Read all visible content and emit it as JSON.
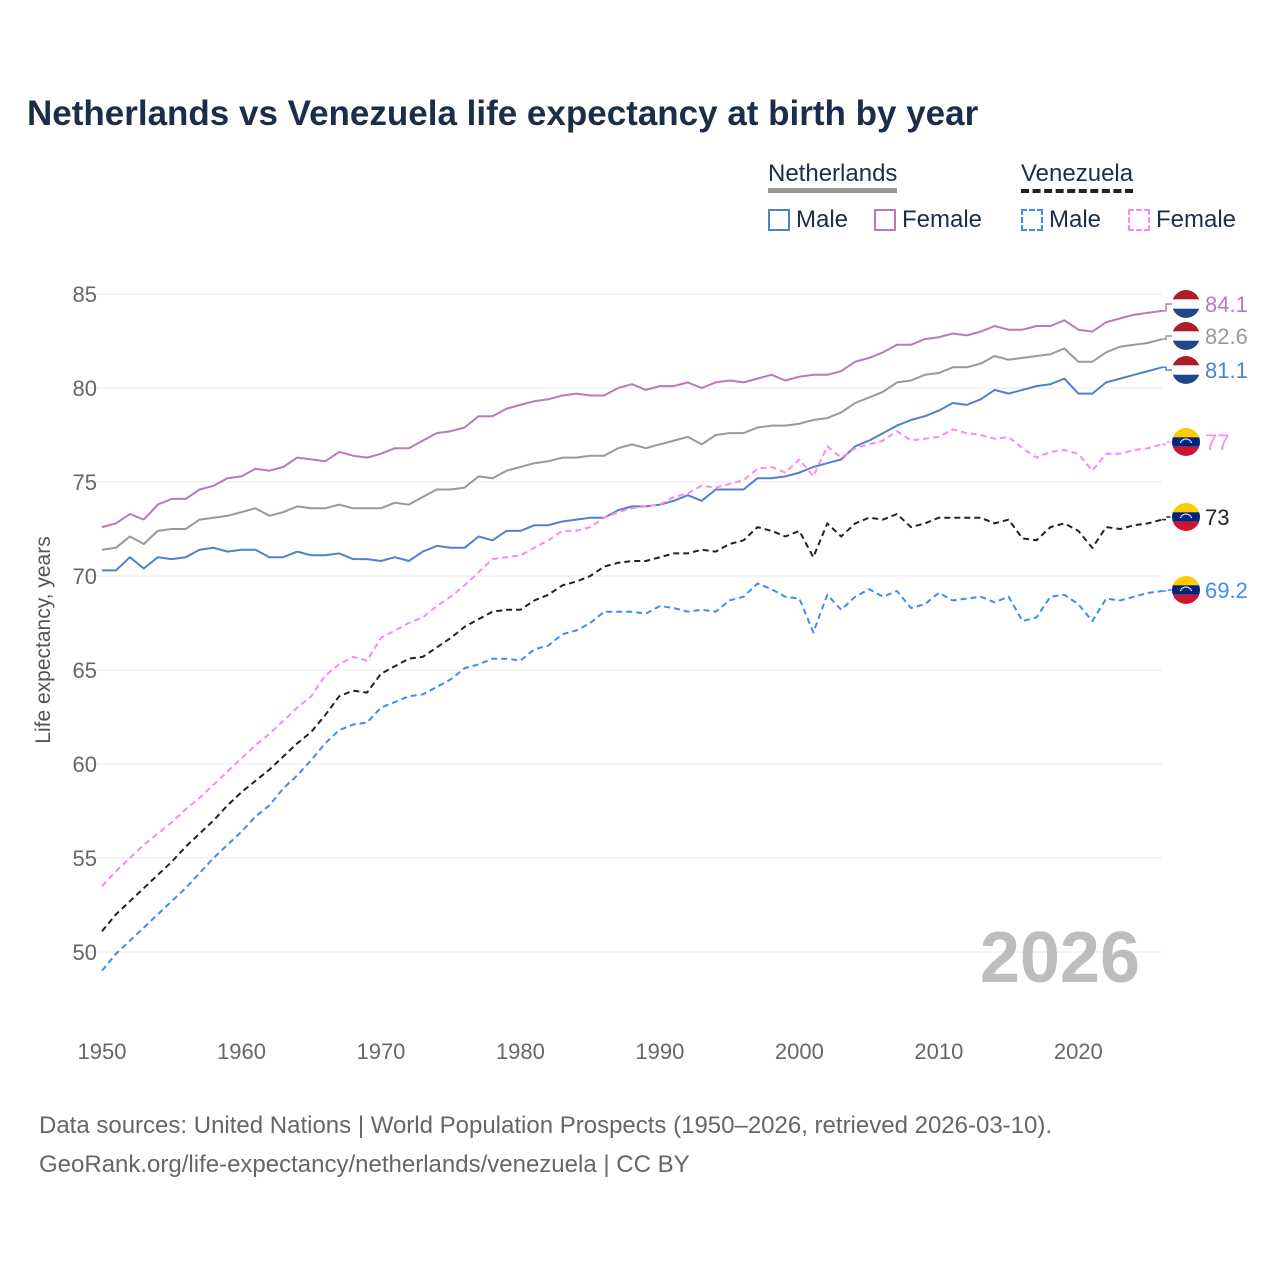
{
  "title": "Netherlands vs Venezuela life expectancy at birth by year",
  "legend": {
    "groups": [
      {
        "name": "Netherlands",
        "items": [
          "Male",
          "Female"
        ]
      },
      {
        "name": "Venezuela",
        "items": [
          "Male",
          "Female"
        ]
      }
    ]
  },
  "source": {
    "line1": "Data sources: United Nations | World Population Prospects (1950–2026, retrieved 2026-03-10).",
    "line2": "GeoRank.org/life-expectancy/netherlands/venezuela | CC BY"
  },
  "chart_data": {
    "type": "line",
    "title": "Netherlands vs Venezuela life expectancy at birth by year",
    "xlabel": "",
    "ylabel": "Life expectancy, years",
    "xlim": [
      1950,
      2026
    ],
    "ylim": [
      48,
      86
    ],
    "x_ticks": [
      1950,
      1960,
      1970,
      1980,
      1990,
      2000,
      2010,
      2020
    ],
    "y_ticks": [
      50,
      55,
      60,
      65,
      70,
      75,
      80,
      85
    ],
    "grid": true,
    "legend_position": "top-right",
    "annotation": "2026",
    "x_start": 1950,
    "series": [
      {
        "name": "Netherlands Female",
        "color": "#b87bb5",
        "dash": false,
        "end_label": "84.1",
        "flag": "netherlands",
        "values": [
          72.6,
          72.8,
          73.3,
          73.0,
          73.8,
          74.1,
          74.1,
          74.6,
          74.8,
          75.2,
          75.3,
          75.7,
          75.6,
          75.8,
          76.3,
          76.2,
          76.1,
          76.6,
          76.4,
          76.3,
          76.5,
          76.8,
          76.8,
          77.2,
          77.6,
          77.7,
          77.9,
          78.5,
          78.5,
          78.9,
          79.1,
          79.3,
          79.4,
          79.6,
          79.7,
          79.6,
          79.6,
          80.0,
          80.2,
          79.9,
          80.1,
          80.1,
          80.3,
          80.0,
          80.3,
          80.4,
          80.3,
          80.5,
          80.7,
          80.4,
          80.6,
          80.7,
          80.7,
          80.9,
          81.4,
          81.6,
          81.9,
          82.3,
          82.3,
          82.6,
          82.7,
          82.9,
          82.8,
          83.0,
          83.3,
          83.1,
          83.1,
          83.3,
          83.3,
          83.6,
          83.1,
          83.0,
          83.5,
          83.7,
          83.9,
          84.0,
          84.1
        ]
      },
      {
        "name": "Netherlands",
        "color": "#999999",
        "dash": false,
        "end_label": "82.6",
        "flag": "netherlands",
        "values": [
          71.4,
          71.5,
          72.1,
          71.7,
          72.4,
          72.5,
          72.5,
          73.0,
          73.1,
          73.2,
          73.4,
          73.6,
          73.2,
          73.4,
          73.7,
          73.6,
          73.6,
          73.8,
          73.6,
          73.6,
          73.6,
          73.9,
          73.8,
          74.2,
          74.6,
          74.6,
          74.7,
          75.3,
          75.2,
          75.6,
          75.8,
          76.0,
          76.1,
          76.3,
          76.3,
          76.4,
          76.4,
          76.8,
          77.0,
          76.8,
          77.0,
          77.2,
          77.4,
          77.0,
          77.5,
          77.6,
          77.6,
          77.9,
          78.0,
          78.0,
          78.1,
          78.3,
          78.4,
          78.7,
          79.2,
          79.5,
          79.8,
          80.3,
          80.4,
          80.7,
          80.8,
          81.1,
          81.1,
          81.3,
          81.7,
          81.5,
          81.6,
          81.7,
          81.8,
          82.1,
          81.4,
          81.4,
          81.9,
          82.2,
          82.3,
          82.4,
          82.6
        ]
      },
      {
        "name": "Netherlands Male",
        "color": "#5080d0",
        "dash": false,
        "end_label": "81.1",
        "flag": "netherlands",
        "values": [
          70.3,
          70.3,
          71.0,
          70.4,
          71.0,
          70.9,
          71.0,
          71.4,
          71.5,
          71.3,
          71.4,
          71.4,
          71.0,
          71.0,
          71.3,
          71.1,
          71.1,
          71.2,
          70.9,
          70.9,
          70.8,
          71.0,
          70.8,
          71.3,
          71.6,
          71.5,
          71.5,
          72.1,
          71.9,
          72.4,
          72.4,
          72.7,
          72.7,
          72.9,
          73.0,
          73.1,
          73.1,
          73.5,
          73.7,
          73.7,
          73.8,
          74.0,
          74.3,
          74.0,
          74.6,
          74.6,
          74.6,
          75.2,
          75.2,
          75.3,
          75.5,
          75.8,
          76.0,
          76.2,
          76.9,
          77.2,
          77.6,
          78.0,
          78.3,
          78.5,
          78.8,
          79.2,
          79.1,
          79.4,
          79.9,
          79.7,
          79.9,
          80.1,
          80.2,
          80.5,
          79.7,
          79.7,
          80.3,
          80.5,
          80.7,
          80.9,
          81.1
        ]
      },
      {
        "name": "Venezuela Female",
        "color": "#ff88f0",
        "dash": true,
        "end_label": "77",
        "flag": "venezuela",
        "values": [
          53.5,
          54.3,
          55.0,
          55.7,
          56.3,
          56.9,
          57.6,
          58.2,
          58.9,
          59.6,
          60.3,
          61.0,
          61.6,
          62.3,
          63.0,
          63.6,
          64.7,
          65.3,
          65.7,
          65.5,
          66.7,
          67.1,
          67.5,
          67.8,
          68.4,
          68.9,
          69.5,
          70.2,
          70.9,
          71.0,
          71.1,
          71.5,
          71.9,
          72.4,
          72.4,
          72.6,
          73.1,
          73.4,
          73.6,
          73.7,
          73.8,
          74.2,
          74.4,
          74.8,
          74.7,
          74.9,
          75.1,
          75.7,
          75.8,
          75.5,
          76.2,
          75.3,
          76.9,
          76.3,
          76.8,
          77.0,
          77.2,
          77.7,
          77.2,
          77.3,
          77.4,
          77.8,
          77.6,
          77.5,
          77.3,
          77.4,
          76.8,
          76.3,
          76.6,
          76.7,
          76.5,
          75.6,
          76.5,
          76.5,
          76.7,
          76.8,
          77.0
        ]
      },
      {
        "name": "Venezuela",
        "color": "#222222",
        "dash": true,
        "end_label": "73",
        "flag": "venezuela",
        "values": [
          51.1,
          52.0,
          52.7,
          53.4,
          54.1,
          54.8,
          55.6,
          56.3,
          57.0,
          57.8,
          58.5,
          59.1,
          59.7,
          60.4,
          61.1,
          61.7,
          62.6,
          63.6,
          63.9,
          63.8,
          64.8,
          65.2,
          65.6,
          65.7,
          66.2,
          66.7,
          67.3,
          67.7,
          68.1,
          68.2,
          68.2,
          68.7,
          69.0,
          69.5,
          69.7,
          70.0,
          70.5,
          70.7,
          70.8,
          70.8,
          71.0,
          71.2,
          71.2,
          71.4,
          71.3,
          71.7,
          71.9,
          72.6,
          72.4,
          72.1,
          72.4,
          71.0,
          72.8,
          72.1,
          72.8,
          73.1,
          73.0,
          73.3,
          72.6,
          72.8,
          73.1,
          73.1,
          73.1,
          73.1,
          72.8,
          73.0,
          72.0,
          71.9,
          72.6,
          72.8,
          72.4,
          71.5,
          72.6,
          72.5,
          72.7,
          72.8,
          73.0
        ]
      },
      {
        "name": "Venezuela Male",
        "color": "#3d8bff",
        "dash": true,
        "end_label": "69.2",
        "flag": "venezuela",
        "values": [
          49.0,
          49.9,
          50.6,
          51.3,
          52.0,
          52.7,
          53.4,
          54.2,
          55.0,
          55.7,
          56.4,
          57.2,
          57.8,
          58.7,
          59.4,
          60.2,
          61.1,
          61.8,
          62.1,
          62.2,
          63.0,
          63.3,
          63.6,
          63.7,
          64.1,
          64.5,
          65.1,
          65.3,
          65.6,
          65.6,
          65.5,
          66.1,
          66.3,
          66.9,
          67.1,
          67.5,
          68.1,
          68.1,
          68.1,
          68.0,
          68.4,
          68.3,
          68.1,
          68.2,
          68.1,
          68.7,
          68.9,
          69.6,
          69.3,
          68.9,
          68.8,
          67.0,
          69.0,
          68.2,
          68.9,
          69.3,
          68.9,
          69.2,
          68.3,
          68.5,
          69.1,
          68.7,
          68.8,
          68.9,
          68.6,
          68.9,
          67.6,
          67.8,
          68.9,
          69.0,
          68.5,
          67.6,
          68.8,
          68.7,
          68.9,
          69.1,
          69.2
        ]
      }
    ]
  }
}
